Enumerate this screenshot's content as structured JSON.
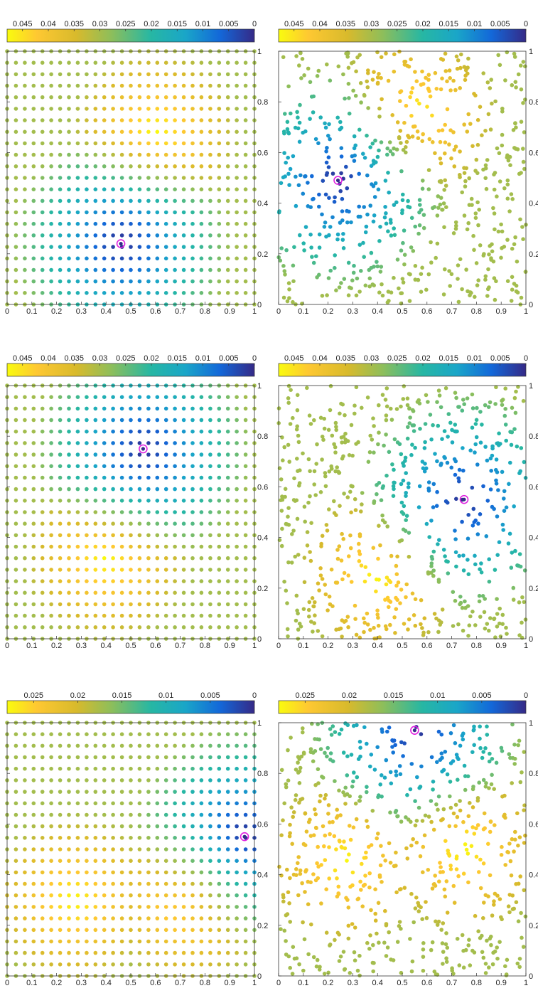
{
  "chart_data": [
    {
      "type": "scatter",
      "grid": "regular",
      "rows": 23,
      "cols": 29,
      "xlim": [
        0,
        1
      ],
      "ylim": [
        0,
        1
      ],
      "xticks": [
        "0",
        "0.1",
        "0.2",
        "0.3",
        "0.4",
        "0.5",
        "0.6",
        "0.7",
        "0.8",
        "0.9",
        "1"
      ],
      "yticks": [
        "0",
        "0.2",
        "0.4",
        "0.6",
        "0.8",
        "1"
      ],
      "colorbar": {
        "ticks": [
          "0",
          "0.005",
          "0.01",
          "0.015",
          "0.02",
          "0.025",
          "0.03",
          "0.035",
          "0.04",
          "0.045"
        ],
        "max": 0.048
      },
      "marker": {
        "x": 0.46,
        "y": 0.24
      },
      "hotspots": [
        {
          "x": 0.6,
          "y": 0.68
        }
      ]
    },
    {
      "type": "scatter",
      "grid": "regular",
      "rows": 23,
      "cols": 29,
      "xlim": [
        0,
        1
      ],
      "ylim": [
        0,
        1
      ],
      "xticks": [
        "0",
        "0.1",
        "0.2",
        "0.3",
        "0.4",
        "0.5",
        "0.6",
        "0.7",
        "0.8",
        "0.9",
        "1"
      ],
      "yticks": [
        "0",
        "0.2",
        "0.4",
        "0.6",
        "0.8",
        "1"
      ],
      "colorbar": {
        "ticks": [
          "0",
          "0.005",
          "0.01",
          "0.015",
          "0.02",
          "0.025",
          "0.03",
          "0.035",
          "0.04",
          "0.045"
        ],
        "max": 0.048
      },
      "marker": {
        "x": 0.55,
        "y": 0.75
      },
      "hotspots": [
        {
          "x": 0.4,
          "y": 0.32
        }
      ]
    },
    {
      "type": "scatter",
      "grid": "regular",
      "rows": 23,
      "cols": 29,
      "xlim": [
        0,
        1
      ],
      "ylim": [
        0,
        1
      ],
      "xticks": [
        "0",
        "0.1",
        "0.2",
        "0.3",
        "0.4",
        "0.5",
        "0.6",
        "0.7",
        "0.8",
        "0.9",
        "1"
      ],
      "yticks": [
        "0",
        "0.2",
        "0.4",
        "0.6",
        "0.8",
        "1"
      ],
      "colorbar": {
        "ticks": [
          "0",
          "0.005",
          "0.01",
          "0.015",
          "0.02",
          "0.025"
        ],
        "max": 0.028
      },
      "marker": {
        "x": 0.96,
        "y": 0.55
      },
      "hotspots": [
        {
          "x": 0.27,
          "y": 0.3
        },
        {
          "x": 0.73,
          "y": 0.3
        }
      ]
    },
    {
      "type": "scatter",
      "grid": "random",
      "points": 640,
      "seed": 11,
      "xlim": [
        0,
        1
      ],
      "ylim": [
        0,
        1
      ],
      "xticks": [
        "0",
        "0.1",
        "0.2",
        "0.3",
        "0.4",
        "0.5",
        "0.6",
        "0.7",
        "0.8",
        "0.9",
        "1"
      ],
      "yticks": [
        "0",
        "0.2",
        "0.4",
        "0.6",
        "0.8",
        "1"
      ],
      "colorbar": {
        "ticks": [
          "0",
          "0.005",
          "0.01",
          "0.015",
          "0.02",
          "0.025",
          "0.03",
          "0.035",
          "0.04",
          "0.045"
        ],
        "max": 0.048
      },
      "marker": {
        "x": 0.24,
        "y": 0.49
      },
      "hotspots": [
        {
          "x": 0.55,
          "y": 0.75
        }
      ]
    },
    {
      "type": "scatter",
      "grid": "random",
      "points": 640,
      "seed": 23,
      "xlim": [
        0,
        1
      ],
      "ylim": [
        0,
        1
      ],
      "xticks": [
        "0",
        "0.1",
        "0.2",
        "0.3",
        "0.4",
        "0.5",
        "0.6",
        "0.7",
        "0.8",
        "0.9",
        "1"
      ],
      "yticks": [
        "0",
        "0.2",
        "0.4",
        "0.6",
        "0.8",
        "1"
      ],
      "colorbar": {
        "ticks": [
          "0",
          "0.005",
          "0.01",
          "0.015",
          "0.02",
          "0.025",
          "0.03",
          "0.035",
          "0.04",
          "0.045"
        ],
        "max": 0.048
      },
      "marker": {
        "x": 0.75,
        "y": 0.55
      },
      "hotspots": [
        {
          "x": 0.4,
          "y": 0.25
        }
      ]
    },
    {
      "type": "scatter",
      "grid": "random",
      "points": 640,
      "seed": 37,
      "xlim": [
        0,
        1
      ],
      "ylim": [
        0,
        1
      ],
      "xticks": [
        "0",
        "0.1",
        "0.2",
        "0.3",
        "0.4",
        "0.5",
        "0.6",
        "0.7",
        "0.8",
        "0.9",
        "1"
      ],
      "yticks": [
        "0",
        "0.2",
        "0.4",
        "0.6",
        "0.8",
        "1"
      ],
      "colorbar": {
        "ticks": [
          "0",
          "0.005",
          "0.01",
          "0.015",
          "0.02",
          "0.025"
        ],
        "max": 0.028
      },
      "marker": {
        "x": 0.55,
        "y": 0.97
      },
      "hotspots": [
        {
          "x": 0.75,
          "y": 0.5
        },
        {
          "x": 0.27,
          "y": 0.45
        }
      ]
    }
  ]
}
